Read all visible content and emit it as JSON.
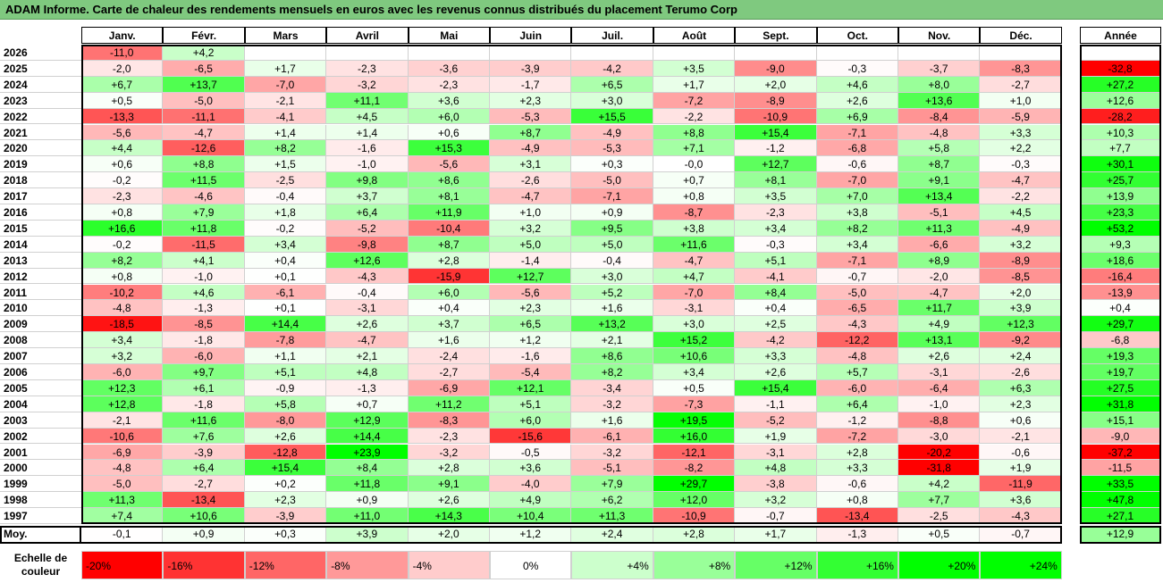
{
  "title": "ADAM Informe. Carte de chaleur des rendements mensuels en euros avec les revenus connus distribués du placement Terumo Corp",
  "chart_data": {
    "type": "heatmap",
    "title": "ADAM Informe. Carte de chaleur des rendements mensuels en euros avec les revenus connus distribués du placement Terumo Corp",
    "months": [
      "Janv.",
      "Févr.",
      "Mars",
      "Avril",
      "Mai",
      "Juin",
      "Juil.",
      "Août",
      "Sept.",
      "Oct.",
      "Nov.",
      "Déc."
    ],
    "year_header": "Année",
    "rows": [
      {
        "year": "2026",
        "values": [
          "-11,0",
          "+4,2",
          "",
          "",
          "",
          "",
          "",
          "",
          "",
          "",
          "",
          ""
        ],
        "annual": ""
      },
      {
        "year": "2025",
        "values": [
          "-2,0",
          "-6,5",
          "+1,7",
          "-2,3",
          "-3,6",
          "-3,9",
          "-4,2",
          "+3,5",
          "-9,0",
          "-0,3",
          "-3,7",
          "-8,3"
        ],
        "annual": "-32,8"
      },
      {
        "year": "2024",
        "values": [
          "+6,7",
          "+13,7",
          "-7,0",
          "-3,2",
          "-2,3",
          "-1,7",
          "+6,5",
          "+1,7",
          "+2,0",
          "+4,6",
          "+8,0",
          "-2,7"
        ],
        "annual": "+27,2"
      },
      {
        "year": "2023",
        "values": [
          "+0,5",
          "-5,0",
          "-2,1",
          "+11,1",
          "+3,6",
          "+2,3",
          "+3,0",
          "-7,2",
          "-8,9",
          "+2,6",
          "+13,6",
          "+1,0"
        ],
        "annual": "+12,6"
      },
      {
        "year": "2022",
        "values": [
          "-13,3",
          "-11,1",
          "-4,1",
          "+4,5",
          "+6,0",
          "-5,3",
          "+15,5",
          "-2,2",
          "-10,9",
          "+6,9",
          "-8,4",
          "-5,9"
        ],
        "annual": "-28,2"
      },
      {
        "year": "2021",
        "values": [
          "-5,6",
          "-4,7",
          "+1,4",
          "+1,4",
          "+0,6",
          "+8,7",
          "-4,9",
          "+8,8",
          "+15,4",
          "-7,1",
          "-4,8",
          "+3,3"
        ],
        "annual": "+10,3"
      },
      {
        "year": "2020",
        "values": [
          "+4,4",
          "-12,6",
          "+8,2",
          "-1,6",
          "+15,3",
          "-4,9",
          "-5,3",
          "+7,1",
          "-1,2",
          "-6,8",
          "+5,8",
          "+2,2"
        ],
        "annual": "+7,7"
      },
      {
        "year": "2019",
        "values": [
          "+0,6",
          "+8,8",
          "+1,5",
          "-1,0",
          "-5,6",
          "+3,1",
          "+0,3",
          "-0,0",
          "+12,7",
          "-0,6",
          "+8,7",
          "-0,3"
        ],
        "annual": "+30,1"
      },
      {
        "year": "2018",
        "values": [
          "-0,2",
          "+11,5",
          "-2,5",
          "+9,8",
          "+8,6",
          "-2,6",
          "-5,0",
          "+0,7",
          "+8,1",
          "-7,0",
          "+9,1",
          "-4,7"
        ],
        "annual": "+25,7"
      },
      {
        "year": "2017",
        "values": [
          "-2,3",
          "-4,6",
          "-0,4",
          "+3,7",
          "+8,1",
          "-4,7",
          "-7,1",
          "+0,8",
          "+3,5",
          "+7,0",
          "+13,4",
          "-2,2"
        ],
        "annual": "+13,9"
      },
      {
        "year": "2016",
        "values": [
          "+0,8",
          "+7,9",
          "+1,8",
          "+6,4",
          "+11,9",
          "+1,0",
          "+0,9",
          "-8,7",
          "-2,3",
          "+3,8",
          "-5,1",
          "+4,5"
        ],
        "annual": "+23,3"
      },
      {
        "year": "2015",
        "values": [
          "+16,6",
          "+11,8",
          "-0,2",
          "-5,2",
          "-10,4",
          "+3,2",
          "+9,5",
          "+3,8",
          "+3,4",
          "+8,2",
          "+11,3",
          "-4,9"
        ],
        "annual": "+53,2"
      },
      {
        "year": "2014",
        "values": [
          "-0,2",
          "-11,5",
          "+3,4",
          "-9,8",
          "+8,7",
          "+5,0",
          "+5,0",
          "+11,6",
          "-0,3",
          "+3,4",
          "-6,6",
          "+3,2"
        ],
        "annual": "+9,3"
      },
      {
        "year": "2013",
        "values": [
          "+8,2",
          "+4,1",
          "+0,4",
          "+12,6",
          "+2,8",
          "-1,4",
          "-0,4",
          "-4,7",
          "+5,1",
          "-7,1",
          "+8,9",
          "-8,9"
        ],
        "annual": "+18,6"
      },
      {
        "year": "2012",
        "values": [
          "+0,8",
          "-1,0",
          "+0,1",
          "-4,3",
          "-15,9",
          "+12,7",
          "+3,0",
          "+4,7",
          "-4,1",
          "-0,7",
          "-2,0",
          "-8,5"
        ],
        "annual": "-16,4"
      },
      {
        "year": "2011",
        "values": [
          "-10,2",
          "+4,6",
          "-6,1",
          "-0,4",
          "+6,0",
          "-5,6",
          "+5,2",
          "-7,0",
          "+8,4",
          "-5,0",
          "-4,7",
          "+2,0"
        ],
        "annual": "-13,9"
      },
      {
        "year": "2010",
        "values": [
          "-4,8",
          "-1,3",
          "+0,1",
          "-3,1",
          "+0,4",
          "+2,3",
          "+1,6",
          "-3,1",
          "+0,4",
          "-6,5",
          "+11,7",
          "+3,9"
        ],
        "annual": "+0,4"
      },
      {
        "year": "2009",
        "values": [
          "-18,5",
          "-8,5",
          "+14,4",
          "+2,6",
          "+3,7",
          "+6,5",
          "+13,2",
          "+3,0",
          "+2,5",
          "-4,3",
          "+4,9",
          "+12,3"
        ],
        "annual": "+29,7"
      },
      {
        "year": "2008",
        "values": [
          "+3,4",
          "-1,8",
          "-7,8",
          "-4,7",
          "+1,6",
          "+1,2",
          "+2,1",
          "+15,2",
          "-4,2",
          "-12,2",
          "+13,1",
          "-9,2"
        ],
        "annual": "-6,8"
      },
      {
        "year": "2007",
        "values": [
          "+3,2",
          "-6,0",
          "+1,1",
          "+2,1",
          "-2,4",
          "-1,6",
          "+8,6",
          "+10,6",
          "+3,3",
          "-4,8",
          "+2,6",
          "+2,4"
        ],
        "annual": "+19,3"
      },
      {
        "year": "2006",
        "values": [
          "-6,0",
          "+9,7",
          "+5,1",
          "+4,8",
          "-2,7",
          "-5,4",
          "+8,2",
          "+3,4",
          "+2,6",
          "+5,7",
          "-3,1",
          "-2,6"
        ],
        "annual": "+19,7"
      },
      {
        "year": "2005",
        "values": [
          "+12,3",
          "+6,1",
          "-0,9",
          "-1,3",
          "-6,9",
          "+12,1",
          "-3,4",
          "+0,5",
          "+15,4",
          "-6,0",
          "-6,4",
          "+6,3"
        ],
        "annual": "+27,5"
      },
      {
        "year": "2004",
        "values": [
          "+12,8",
          "-1,8",
          "+5,8",
          "+0,7",
          "+11,2",
          "+5,1",
          "-3,2",
          "-7,3",
          "-1,1",
          "+6,4",
          "-1,0",
          "+2,3"
        ],
        "annual": "+31,8"
      },
      {
        "year": "2003",
        "values": [
          "-2,1",
          "+11,6",
          "-8,0",
          "+12,9",
          "-8,3",
          "+6,0",
          "+1,6",
          "+19,5",
          "-5,2",
          "-1,2",
          "-8,8",
          "+0,6"
        ],
        "annual": "+15,1"
      },
      {
        "year": "2002",
        "values": [
          "-10,6",
          "+7,6",
          "+2,6",
          "+14,4",
          "-2,3",
          "-15,6",
          "-6,1",
          "+16,0",
          "+1,9",
          "-7,2",
          "-3,0",
          "-2,1"
        ],
        "annual": "-9,0"
      },
      {
        "year": "2001",
        "values": [
          "-6,9",
          "-3,9",
          "-12,8",
          "+23,9",
          "-3,2",
          "-0,5",
          "-3,2",
          "-12,1",
          "-3,1",
          "+2,8",
          "-20,2",
          "-0,6"
        ],
        "annual": "-37,2"
      },
      {
        "year": "2000",
        "values": [
          "-4,8",
          "+6,4",
          "+15,4",
          "+8,4",
          "+2,8",
          "+3,6",
          "-5,1",
          "-8,2",
          "+4,8",
          "+3,3",
          "-31,8",
          "+1,9"
        ],
        "annual": "-11,5"
      },
      {
        "year": "1999",
        "values": [
          "-5,0",
          "-2,7",
          "+0,2",
          "+11,8",
          "+9,1",
          "-4,0",
          "+7,9",
          "+29,7",
          "-3,8",
          "-0,6",
          "+4,2",
          "-11,9"
        ],
        "annual": "+33,5"
      },
      {
        "year": "1998",
        "values": [
          "+11,3",
          "-13,4",
          "+2,3",
          "+0,9",
          "+2,6",
          "+4,9",
          "+6,2",
          "+12,0",
          "+3,2",
          "+0,8",
          "+7,7",
          "+3,6"
        ],
        "annual": "+47,8"
      },
      {
        "year": "1997",
        "values": [
          "+7,4",
          "+10,6",
          "-3,9",
          "+11,0",
          "+14,3",
          "+10,4",
          "+11,3",
          "-10,9",
          "-0,7",
          "-13,4",
          "-2,5",
          "-4,3"
        ],
        "annual": "+27,1"
      }
    ],
    "average": {
      "label": "Moy.",
      "values": [
        "-0,1",
        "+0,9",
        "+0,3",
        "+3,9",
        "+2,0",
        "+1,2",
        "+2,4",
        "+2,8",
        "+1,7",
        "-1,3",
        "+0,5",
        "-0,7"
      ],
      "annual": "+12,9"
    },
    "legend": {
      "label": "Echelle de couleur",
      "label_line1": "Echelle de",
      "label_line2": "couleur",
      "stops": [
        "-20%",
        "-16%",
        "-12%",
        "-8%",
        "-4%",
        "0%",
        "+4%",
        "+8%",
        "+12%",
        "+16%",
        "+20%",
        "+24%"
      ],
      "stop_values": [
        -20,
        -16,
        -12,
        -8,
        -4,
        0,
        4,
        8,
        12,
        16,
        20,
        24
      ]
    },
    "colors": {
      "negative_max": "#ff0000",
      "neutral": "#ffffff",
      "positive_max": "#00ff00",
      "title_bar": "#7fc97f"
    }
  }
}
